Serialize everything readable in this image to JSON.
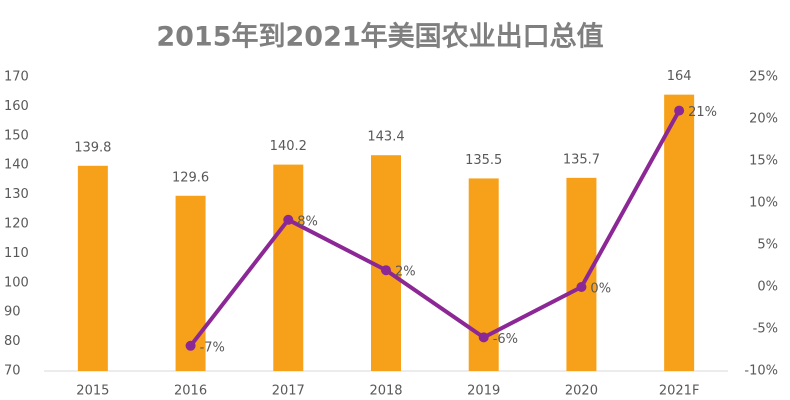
{
  "chart_data": {
    "type": "bar",
    "title": "2015年到2021年美国农业出口总值",
    "categories": [
      "2015",
      "2016",
      "2017",
      "2018",
      "2019",
      "2020",
      "2021F"
    ],
    "series": [
      {
        "type": "bar",
        "color": "#f7a11a",
        "values": [
          139.8,
          129.6,
          140.2,
          143.4,
          135.5,
          135.7,
          164
        ]
      },
      {
        "type": "line",
        "axis": "y2",
        "color": "#8b2896",
        "values": [
          null,
          -7,
          8,
          2,
          -6,
          0,
          21
        ],
        "value_labels": [
          null,
          "-7%",
          "8%",
          "2%",
          "-6%",
          "0%",
          "21%"
        ]
      }
    ],
    "ylim": [
      70,
      170
    ],
    "yticks": [
      70,
      80,
      90,
      100,
      110,
      120,
      130,
      140,
      150,
      160,
      170
    ],
    "y2lim": [
      -10,
      25
    ],
    "y2ticks": [
      {
        "value": -10,
        "label": "-10%"
      },
      {
        "value": -5,
        "label": "-5%"
      },
      {
        "value": 0,
        "label": "0%"
      },
      {
        "value": 5,
        "label": "5%"
      },
      {
        "value": 10,
        "label": "10%"
      },
      {
        "value": 15,
        "label": "15%"
      },
      {
        "value": 20,
        "label": "20%"
      },
      {
        "value": 25,
        "label": "25%"
      }
    ]
  }
}
